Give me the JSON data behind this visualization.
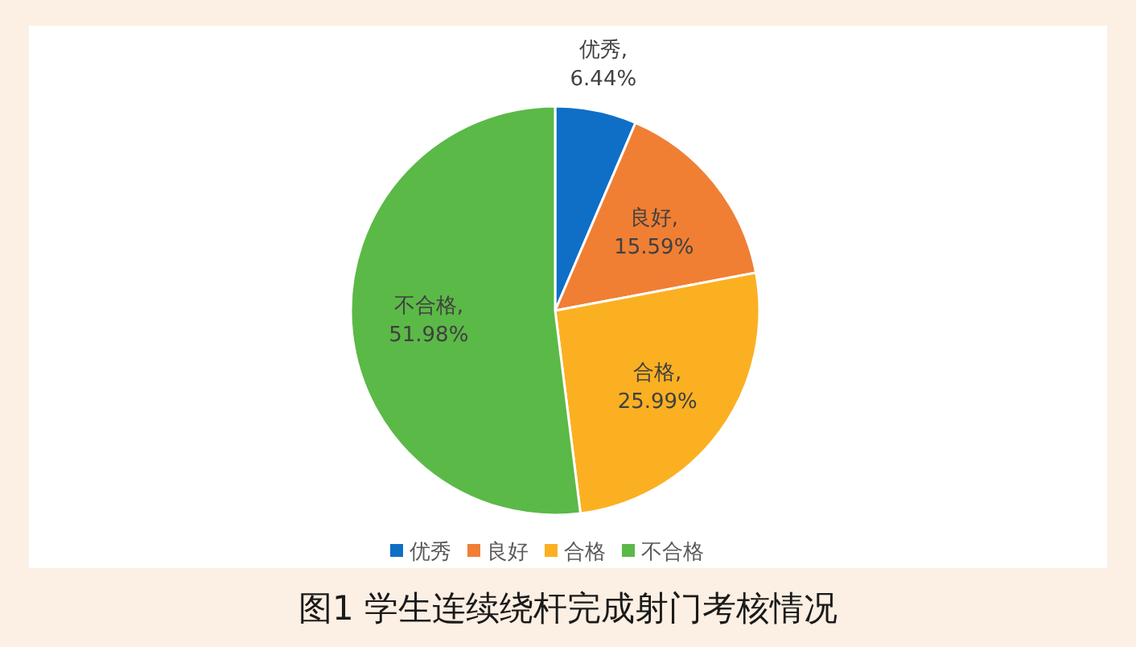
{
  "chart_data": {
    "type": "pie",
    "categories": [
      "优秀",
      "良好",
      "合格",
      "不合格"
    ],
    "values": [
      6.44,
      15.59,
      25.99,
      51.98
    ],
    "colors": [
      "#0f6fc6",
      "#f07f34",
      "#fbb022",
      "#5bb947"
    ],
    "value_labels": [
      "优秀, 6.44%",
      "良好, 15.59%",
      "合格, 25.99%",
      "不合格, 51.98%"
    ],
    "legend": "bottom",
    "annotations": [
      "图1 学生连续绕杆完成射门考核情况"
    ]
  }
}
